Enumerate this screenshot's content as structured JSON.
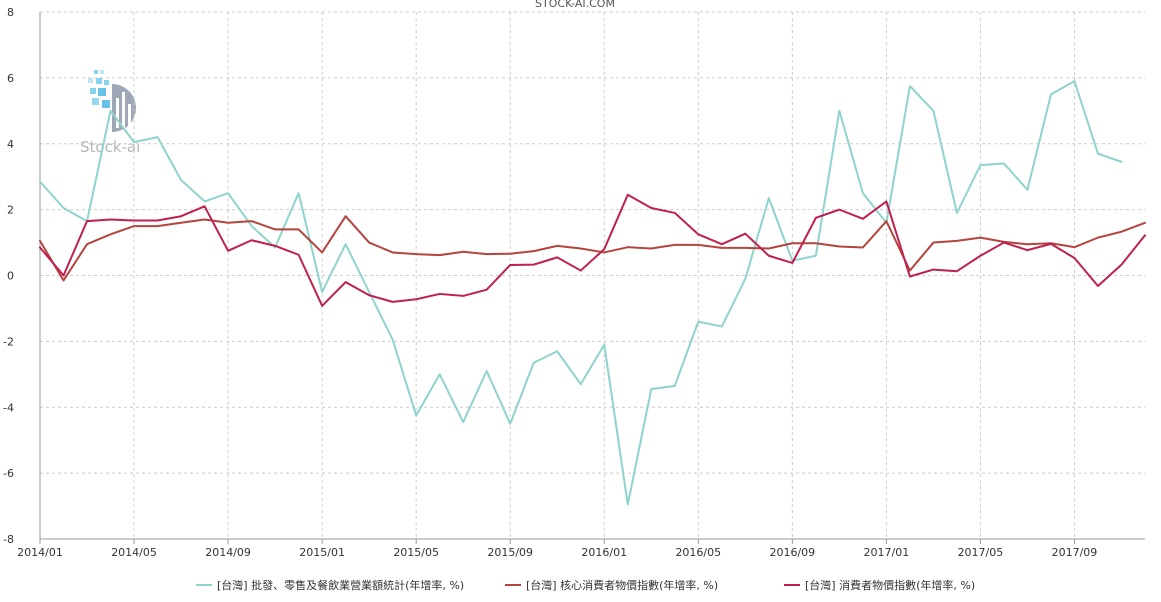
{
  "chart_data": {
    "type": "line",
    "title": "STOCK-AI.COM",
    "watermark": "Stock-ai",
    "xlabel": "",
    "ylabel": "",
    "ylim": [
      -8,
      8
    ],
    "yticks": [
      -8,
      -6,
      -4,
      -2,
      0,
      2,
      4,
      6,
      8
    ],
    "x": [
      "2014/01",
      "2014/02",
      "2014/03",
      "2014/04",
      "2014/05",
      "2014/06",
      "2014/07",
      "2014/08",
      "2014/09",
      "2014/10",
      "2014/11",
      "2014/12",
      "2015/01",
      "2015/02",
      "2015/03",
      "2015/04",
      "2015/05",
      "2015/06",
      "2015/07",
      "2015/08",
      "2015/09",
      "2015/10",
      "2015/11",
      "2015/12",
      "2016/01",
      "2016/02",
      "2016/03",
      "2016/04",
      "2016/05",
      "2016/06",
      "2016/07",
      "2016/08",
      "2016/09",
      "2016/10",
      "2016/11",
      "2016/12",
      "2017/01",
      "2017/02",
      "2017/03",
      "2017/04",
      "2017/05",
      "2017/06",
      "2017/07",
      "2017/08",
      "2017/09",
      "2017/10",
      "2017/11",
      "2017/12"
    ],
    "xtick_labels": [
      "2014/01",
      "2014/05",
      "2014/09",
      "2015/01",
      "2015/05",
      "2015/09",
      "2016/01",
      "2016/05",
      "2016/09",
      "2017/01",
      "2017/05",
      "2017/09"
    ],
    "xtick_index": [
      0,
      4,
      8,
      12,
      16,
      20,
      24,
      28,
      32,
      36,
      40,
      44
    ],
    "grid": true,
    "legend_position": "bottom",
    "series": [
      {
        "name": "[台灣] 批發、零售及餐飲業營業額統計(年增率, %)",
        "color": "#8fd3cd",
        "values": [
          2.85,
          2.05,
          1.65,
          5.0,
          4.05,
          4.2,
          2.9,
          2.25,
          2.5,
          1.5,
          0.85,
          2.5,
          -0.5,
          0.95,
          -0.5,
          -1.95,
          -4.25,
          -3.0,
          -4.45,
          -2.9,
          -4.5,
          -2.65,
          -2.3,
          -3.3,
          -2.1,
          -6.95,
          -3.45,
          -3.35,
          -1.4,
          -1.55,
          -0.1,
          2.35,
          0.45,
          0.6,
          5.0,
          2.5,
          1.6,
          5.75,
          5.0,
          1.9,
          3.35,
          3.4,
          2.6,
          5.5,
          5.9,
          3.7,
          3.45,
          null
        ]
      },
      {
        "name": "[台灣] 核心消費者物價指數(年增率, %)",
        "color": "#b5443f",
        "values": [
          1.05,
          -0.15,
          0.95,
          1.25,
          1.5,
          1.5,
          1.6,
          1.7,
          1.6,
          1.65,
          1.4,
          1.4,
          0.7,
          1.8,
          1.0,
          0.7,
          0.65,
          0.62,
          0.72,
          0.65,
          0.66,
          0.74,
          0.9,
          0.82,
          0.7,
          0.86,
          0.82,
          0.93,
          0.93,
          0.84,
          0.84,
          0.82,
          0.98,
          0.98,
          0.88,
          0.85,
          1.65,
          0.15,
          1.0,
          1.05,
          1.15,
          1.02,
          0.95,
          0.98,
          0.86,
          1.15,
          1.33,
          1.6
        ]
      },
      {
        "name": "[台灣] 消費者物價指數(年增率, %)",
        "color": "#c0204e",
        "values": [
          0.85,
          0.0,
          1.65,
          1.7,
          1.67,
          1.67,
          1.8,
          2.1,
          0.75,
          1.07,
          0.9,
          0.63,
          -0.92,
          -0.2,
          -0.6,
          -0.8,
          -0.72,
          -0.56,
          -0.62,
          -0.43,
          0.32,
          0.33,
          0.55,
          0.15,
          0.8,
          2.45,
          2.05,
          1.9,
          1.25,
          0.95,
          1.27,
          0.6,
          0.38,
          1.75,
          2.0,
          1.72,
          2.25,
          -0.03,
          0.18,
          0.13,
          0.6,
          1.0,
          0.77,
          0.96,
          0.53,
          -0.32,
          0.33,
          1.22
        ]
      }
    ]
  }
}
